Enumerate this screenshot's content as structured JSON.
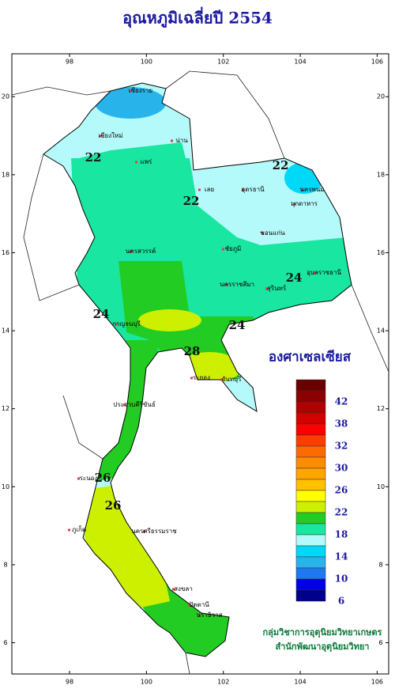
{
  "title": "อุณหภูมิเฉลี่ยปี  2554",
  "map": {
    "xlim": [
      96.5,
      106.3
    ],
    "ylim": [
      5.2,
      21.1
    ],
    "xticks": [
      98,
      100,
      102,
      104,
      106
    ],
    "yticks": [
      20,
      18,
      16,
      14,
      12,
      10,
      8,
      6
    ],
    "places": [
      "เชียงราย",
      "เชียงใหม่",
      "น่าน",
      "แพร่",
      "เลย",
      "นครพนม",
      "อุดรธานี",
      "ขอนแก่น",
      "มุกดาหาร",
      "นครสวรรค์",
      "ชัยภูมิ",
      "นครราชสีมา",
      "อุบลราชธานี",
      "สุรินทร์",
      "กาญจนบุรี",
      "ระยอง",
      "จันทบุรี",
      "ประจวบคีรีขันธ์",
      "ระนอง",
      "ภูเก็ต",
      "นครศรีธรรมราช",
      "สงขลา",
      "ปัตตานี",
      "นราธิวาส"
    ],
    "contour_labels": [
      22,
      22,
      22,
      24,
      24,
      24,
      28,
      26,
      26
    ]
  },
  "legend": {
    "title": "องศาเซลเซียส",
    "colors": [
      "#6b0000",
      "#8b0000",
      "#b00000",
      "#d40000",
      "#ff0000",
      "#ff3c00",
      "#ff6a00",
      "#ff8c00",
      "#ffa500",
      "#ffc000",
      "#ffff00",
      "#ccf000",
      "#22cc22",
      "#19e6a0",
      "#b5fafa",
      "#00d8f8",
      "#28b4ea",
      "#1e78f0",
      "#0000e6",
      "#00008b"
    ],
    "labels": [
      42,
      38,
      32,
      30,
      26,
      22,
      18,
      14,
      10,
      6
    ]
  },
  "credits": [
    "กลุ่มวิชาการอุตุนิยมวิทยาเกษตร",
    "สำนักพัฒนาอุตุนิยมวิทยา"
  ]
}
